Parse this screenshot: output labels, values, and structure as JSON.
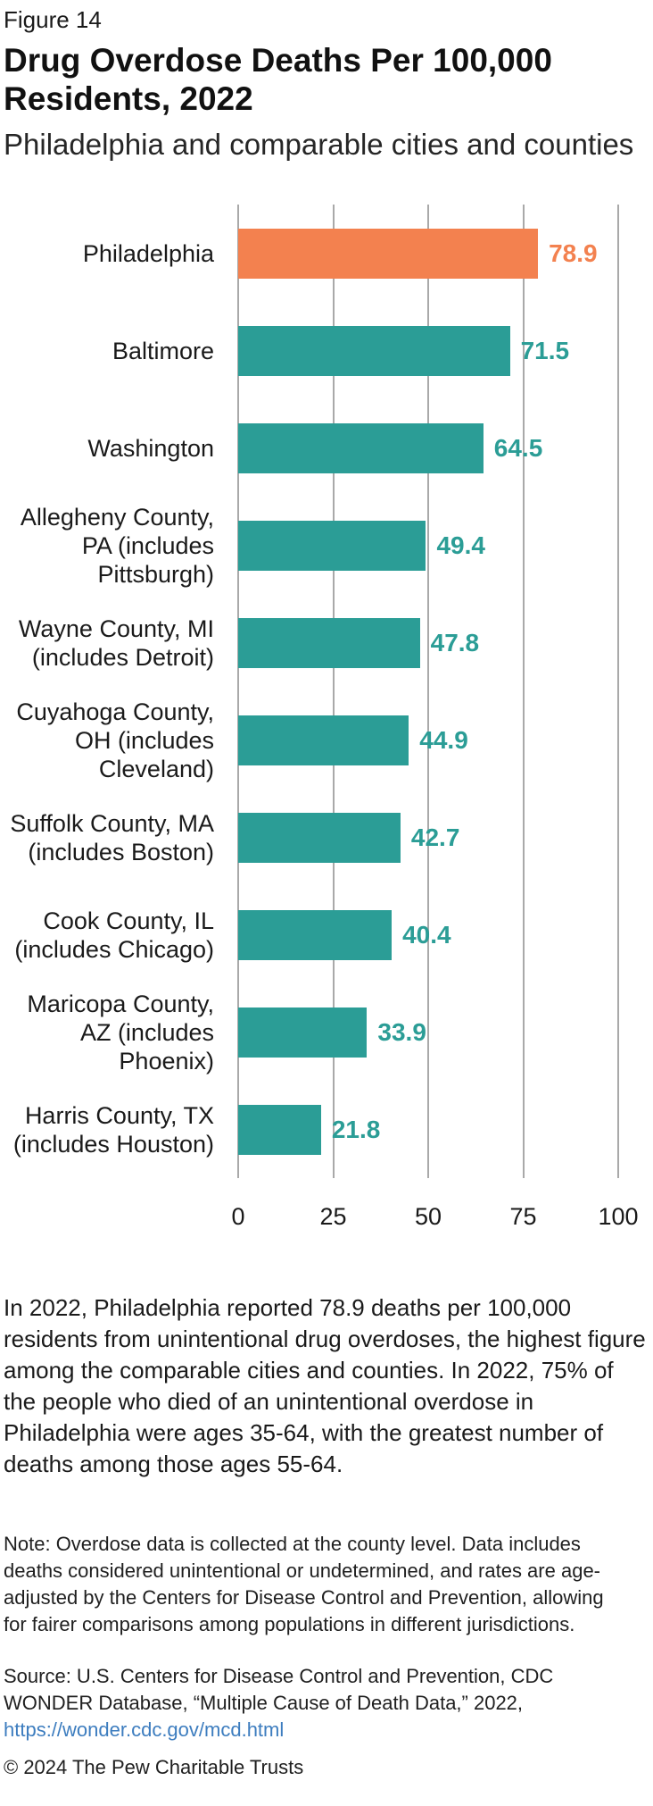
{
  "figure_label": "Figure 14",
  "title_lines": [
    "Drug Overdose Deaths Per 100,000",
    "Residents, 2022"
  ],
  "subtitle": "Philadelphia and comparable cities and counties",
  "chart_data": {
    "type": "bar",
    "orientation": "horizontal",
    "categories": [
      "Philadelphia",
      "Baltimore",
      "Washington",
      "Allegheny County, PA (includes Pittsburgh)",
      "Wayne County, MI (includes Detroit)",
      "Cuyahoga County, OH (includes Cleveland)",
      "Suffolk County, MA (includes Boston)",
      "Cook County, IL (includes Chicago)",
      "Maricopa County, AZ (includes Phoenix)",
      "Harris County, TX (includes Houston)"
    ],
    "values": [
      78.9,
      71.5,
      64.5,
      49.4,
      47.8,
      44.9,
      42.7,
      40.4,
      33.9,
      21.8
    ],
    "value_labels": [
      "78.9",
      "71.5",
      "64.5",
      "49.4",
      "47.8",
      "44.9",
      "42.7",
      "40.4",
      "33.9",
      "21.8"
    ],
    "highlight_index": 0,
    "xlim": [
      0,
      100
    ],
    "x_ticks": [
      0,
      25,
      50,
      75,
      100
    ],
    "grid": true,
    "legend": "none",
    "colors": {
      "highlight": "#F3814F",
      "default": "#2B9D96",
      "gridline": "#A9A9A9"
    }
  },
  "body_paragraph": "In 2022, Philadelphia reported 78.9 deaths per 100,000 residents from unintentional drug overdoses, the highest figure among the comparable cities and counties. In 2022, 75% of the people who died of an unintentional overdose in Philadelphia were ages 35-64, with the greatest number of deaths among those ages 55-64.",
  "note": "Note: Overdose data is collected at the county level. Data includes deaths considered unintentional or undetermined, and rates are age-adjusted by the Centers for Disease Control and Prevention, allowing for fairer comparisons among populations in different jurisdictions.",
  "source": {
    "text": "Source: U.S. Centers for Disease Control and Prevention, CDC WONDER Database, “Multiple Cause of Death Data,” 2022,",
    "link": "https://wonder.cdc.gov/mcd.html"
  },
  "copyright": "© 2024 The Pew Charitable Trusts"
}
